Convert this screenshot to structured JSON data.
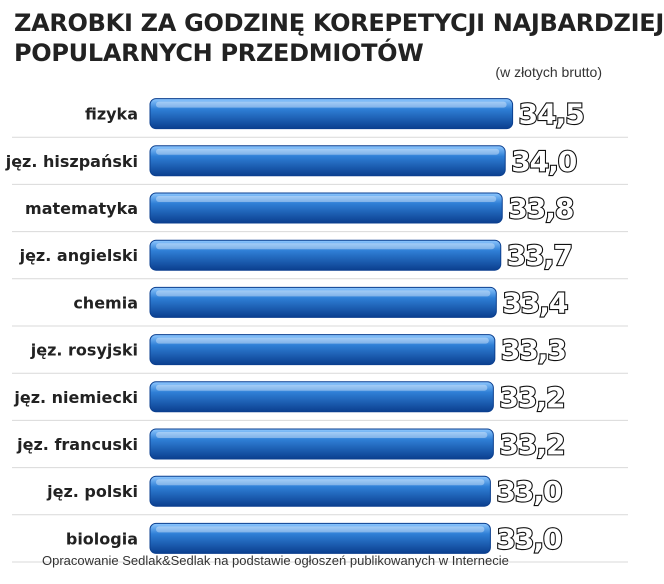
{
  "header": {
    "title_line1": "ZAROBKI ZA GODZINĘ KOREPETYCJI NAJBARDZIEJ",
    "title_line2": "POPULARNYCH PRZEDMIOTÓW",
    "unit_note": "(w złotych brutto)"
  },
  "footer": {
    "source": "Opracowanie Sedlak&Sedlak na podstawie ogłoszeń publikowanych w Internecie"
  },
  "colors": {
    "bar_dark": "#0b3f8f",
    "bar_mid": "#2f7fd6",
    "bar_light": "#8fc8ff",
    "label_text": "#222222",
    "value_text": "#ffffff",
    "value_outline": "#111111",
    "row_separator": "#d9d9d9",
    "background": "#ffffff"
  },
  "chart_data": {
    "type": "bar",
    "orientation": "horizontal",
    "categories": [
      "fizyka",
      "jęz. hiszpański",
      "matematyka",
      "jęz. angielski",
      "chemia",
      "jęz. rosyjski",
      "jęz. niemiecki",
      "jęz. francuski",
      "jęz. polski",
      "biologia"
    ],
    "values": [
      34.5,
      34.0,
      33.8,
      33.7,
      33.4,
      33.3,
      33.2,
      33.2,
      33.0,
      33.0
    ],
    "value_labels": [
      "34,5",
      "34,0",
      "33,8",
      "33,7",
      "33,4",
      "33,3",
      "33,2",
      "33,2",
      "33,0",
      "33,0"
    ],
    "title": "ZAROBKI ZA GODZINĘ KOREPETYCJI NAJBARDZIEJ POPULARNYCH PRZEDMIOTÓW",
    "subtitle": "(w złotych brutto)",
    "xlabel": "",
    "ylabel": "",
    "grid": false,
    "legend": "none"
  }
}
